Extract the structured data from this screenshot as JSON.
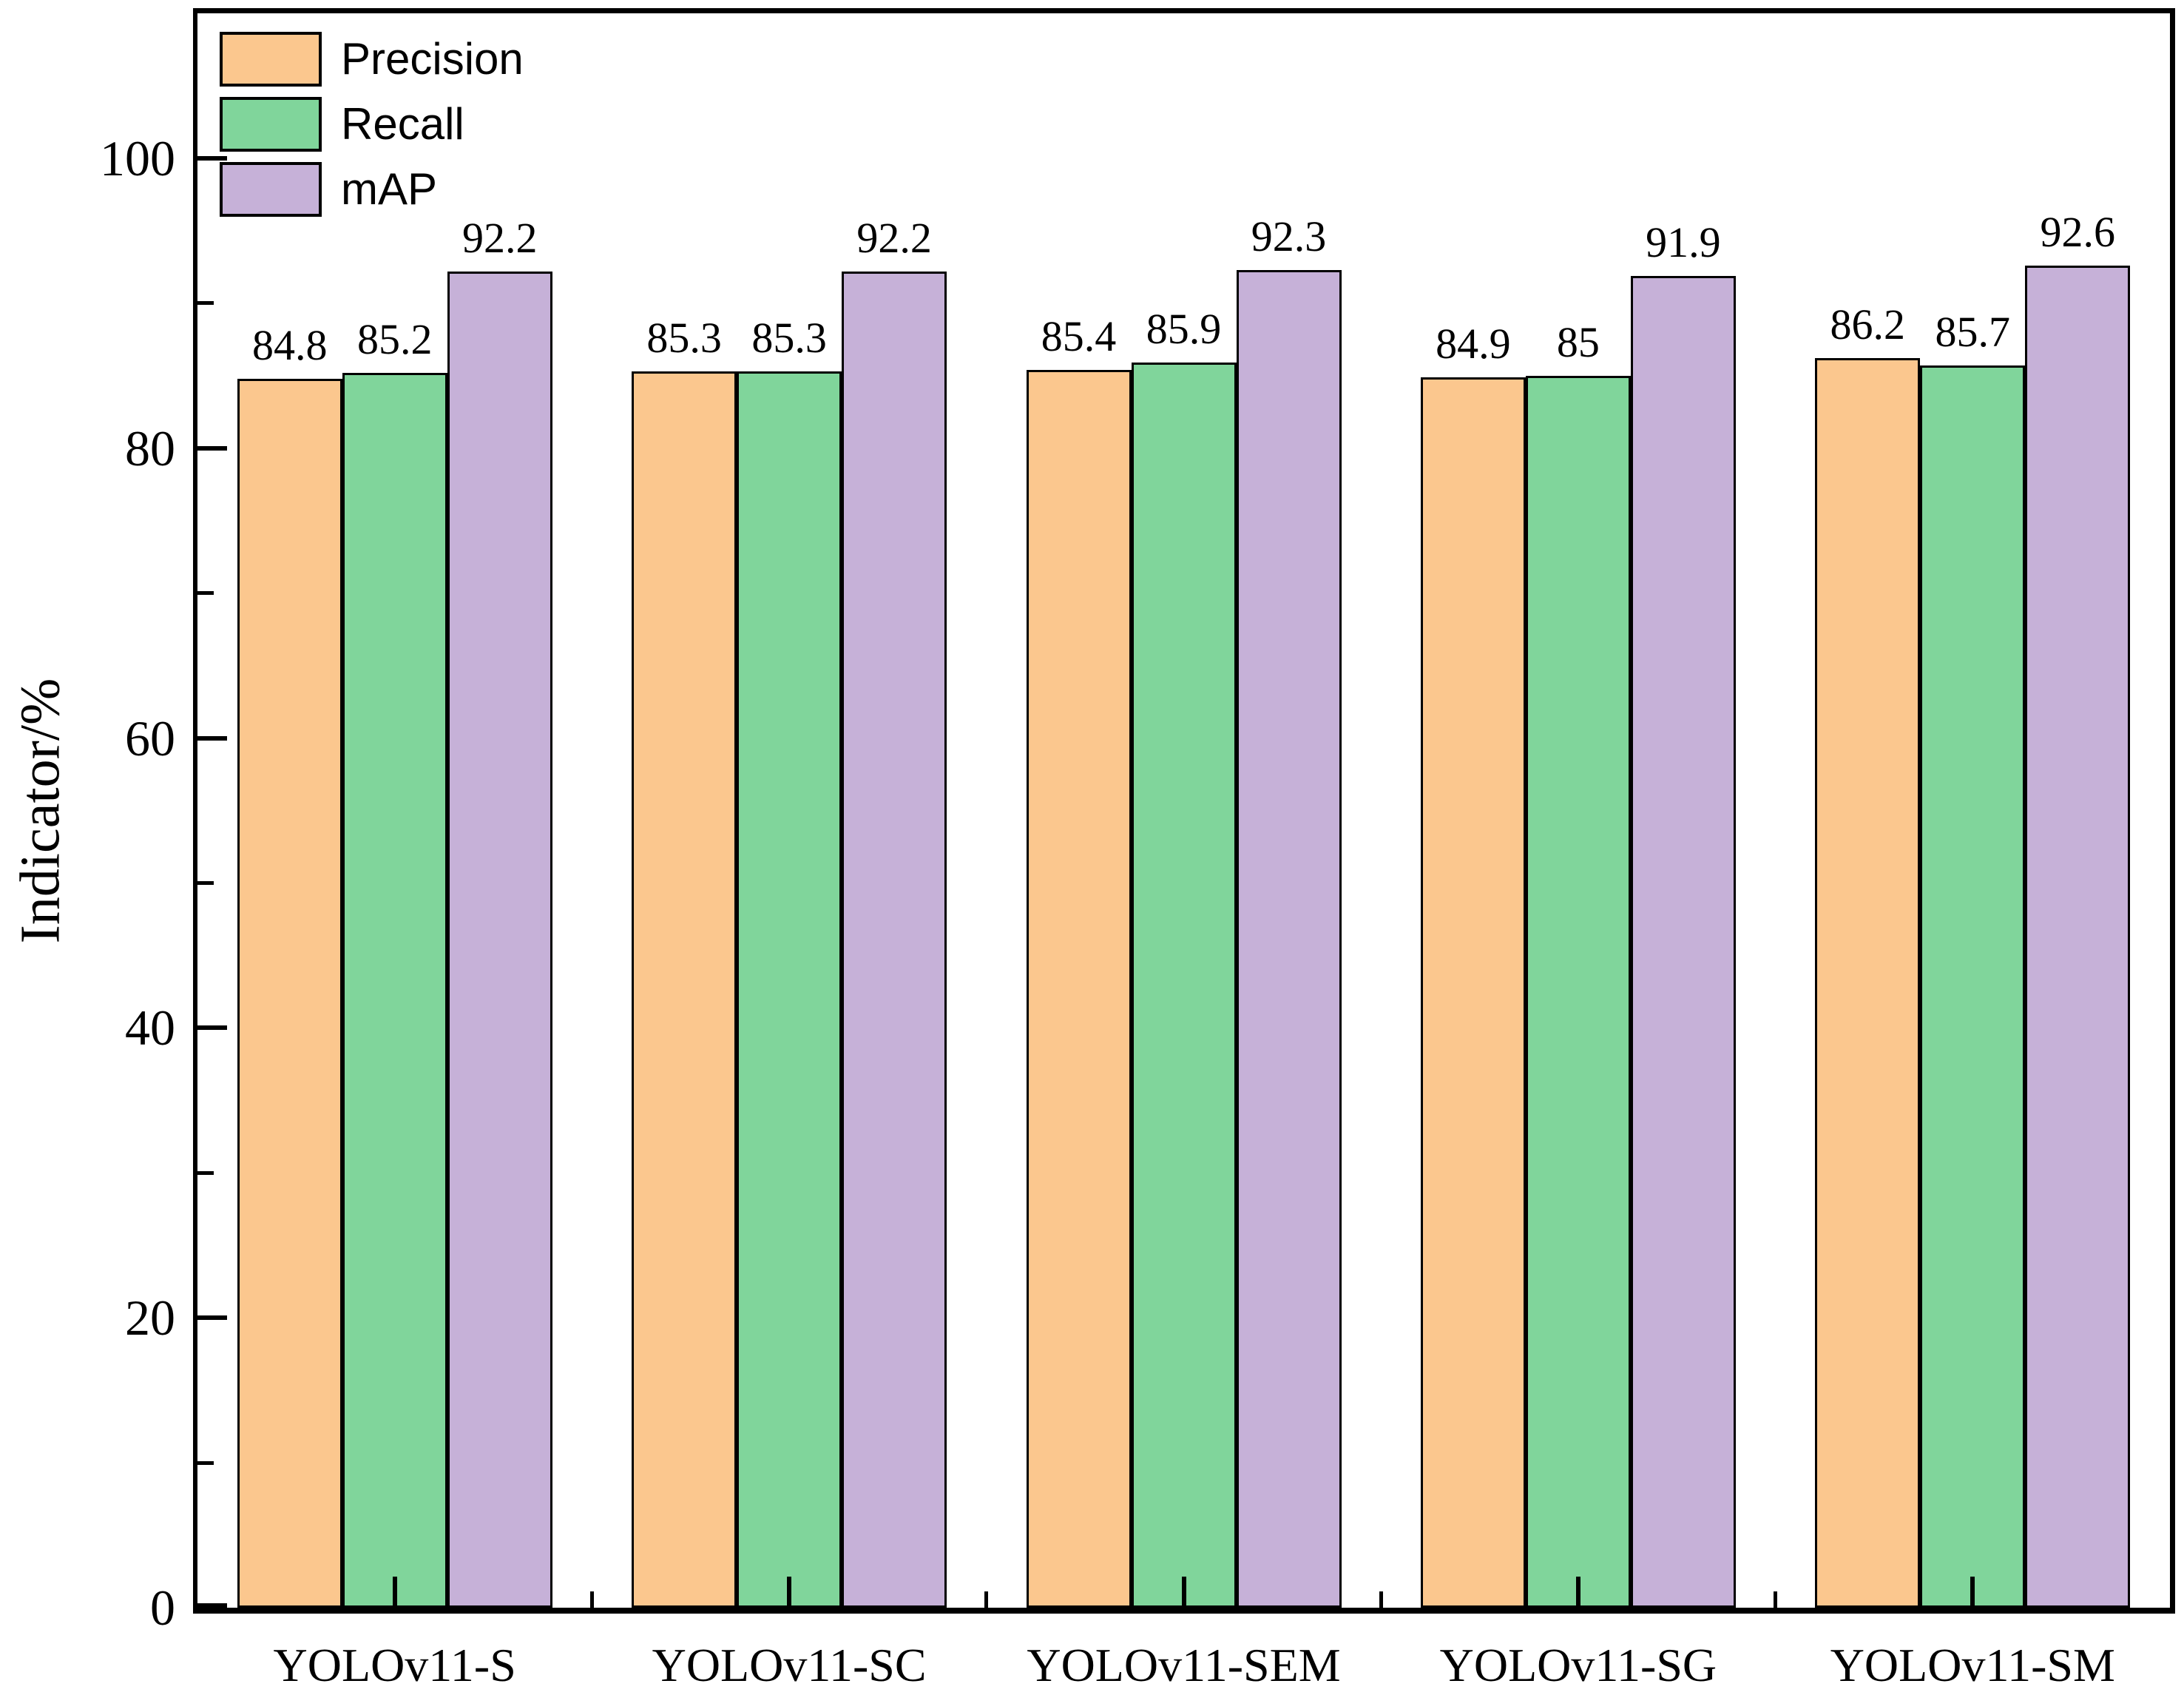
{
  "chart_data": {
    "type": "bar",
    "title": "",
    "categories": [
      "YOLOv11-S",
      "YOLOv11-SC",
      "YOLOv11-SEM",
      "YOLOv11-SG",
      "YOLOv11-SM"
    ],
    "series": [
      {
        "name": "Precision",
        "color": "#FBC78E",
        "values": [
          84.8,
          85.3,
          85.4,
          84.9,
          86.2
        ],
        "labels": [
          "84.8",
          "85.3",
          "85.4",
          "84.9",
          "86.2"
        ]
      },
      {
        "name": "Recall",
        "color": "#80D59B",
        "values": [
          85.2,
          85.3,
          85.9,
          85.0,
          85.7
        ],
        "labels": [
          "85.2",
          "85.3",
          "85.9",
          "85",
          "85.7"
        ]
      },
      {
        "name": "mAP",
        "color": "#C6B1D8",
        "values": [
          92.2,
          92.2,
          92.3,
          91.9,
          92.6
        ],
        "labels": [
          "92.2",
          "92.2",
          "92.3",
          "91.9",
          "92.6"
        ]
      }
    ],
    "xlabel": "",
    "ylabel": "Indicator/%",
    "ylim": [
      0,
      110
    ],
    "yticks_major": [
      0,
      20,
      40,
      60,
      80,
      100
    ],
    "yticks_minor": [
      10,
      30,
      50,
      70,
      90
    ],
    "grid": false,
    "legend_position": "upper-left",
    "bar_edge_color": "#000000",
    "axis_color": "#000000",
    "background_color": "#FFFFFF"
  }
}
